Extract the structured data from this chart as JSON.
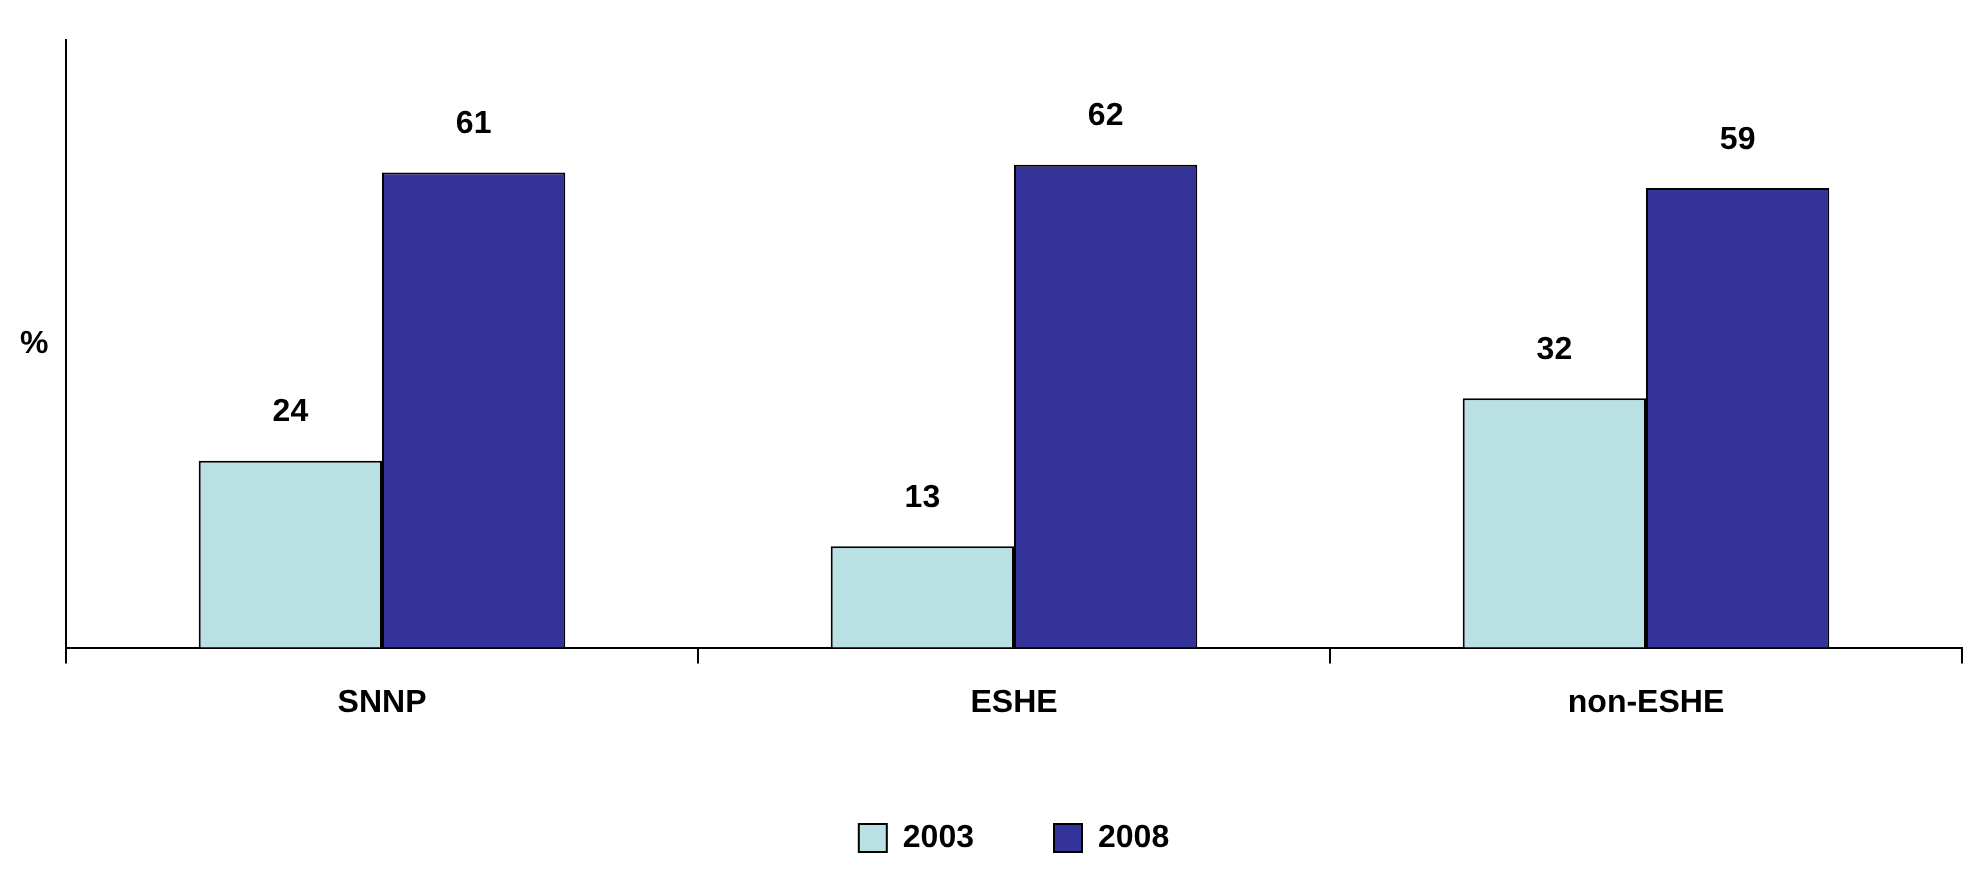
{
  "chart_data": {
    "type": "bar",
    "ylabel": "%",
    "categories": [
      "SNNP",
      "ESHE",
      "non-ESHE"
    ],
    "series": [
      {
        "name": "2003",
        "color": "#b9e1e3",
        "values": [
          24,
          13,
          32
        ]
      },
      {
        "name": "2008",
        "color": "#333399",
        "values": [
          61,
          62,
          59
        ]
      }
    ],
    "ylim": [
      0,
      78
    ],
    "data_labels": true,
    "legend": "bottom",
    "grid": false,
    "tick_labels": "x"
  }
}
